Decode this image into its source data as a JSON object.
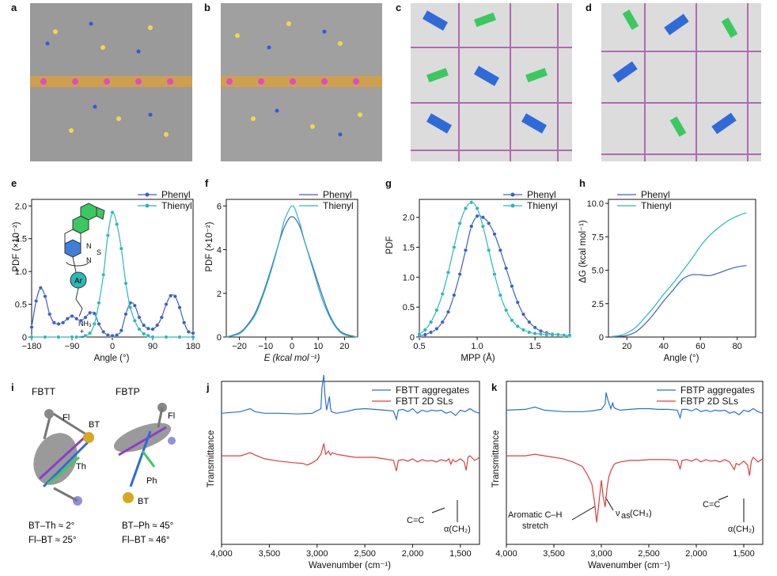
{
  "panel_labels": [
    "a",
    "b",
    "c",
    "d",
    "e",
    "f",
    "g",
    "h",
    "i",
    "j",
    "k"
  ],
  "chart_data": [
    {
      "panel": "e",
      "type": "line",
      "xlabel": "Angle (°)",
      "ylabel": "PDF (×10⁻²)",
      "xlim": [
        -180,
        180
      ],
      "ylim": [
        0,
        2.1
      ],
      "xticks": [
        "−180",
        "−90",
        "0",
        "90",
        "180"
      ],
      "xtick_values": [
        -180,
        -90,
        0,
        90,
        180
      ],
      "yticks": [
        "0",
        "0.5",
        "1.0",
        "1.5",
        "2.0"
      ],
      "ytick_values": [
        0,
        0.5,
        1.0,
        1.5,
        2.0
      ],
      "legend": [
        "Phenyl",
        "Thienyl"
      ],
      "inset_labels": {
        "N1": "N",
        "S": "S",
        "N2": "N",
        "Ar": "Ar",
        "NH3": "NH₃",
        "plus": "+"
      },
      "series": [
        {
          "name": "Phenyl",
          "color": "#3a5fc8",
          "markers": true,
          "x": [
            -180,
            -170,
            -160,
            -150,
            -140,
            -130,
            -120,
            -110,
            -100,
            -90,
            -80,
            -70,
            -60,
            -50,
            -40,
            -30,
            -20,
            -10,
            0,
            10,
            20,
            30,
            40,
            50,
            60,
            70,
            80,
            90,
            100,
            110,
            120,
            130,
            140,
            150,
            160,
            170,
            180
          ],
          "y": [
            0.15,
            0.55,
            0.75,
            0.62,
            0.35,
            0.22,
            0.2,
            0.22,
            0.28,
            0.32,
            0.28,
            0.25,
            0.3,
            0.37,
            0.36,
            0.2,
            0.08,
            0.03,
            0.02,
            0.03,
            0.1,
            0.35,
            0.52,
            0.48,
            0.3,
            0.18,
            0.13,
            0.12,
            0.18,
            0.3,
            0.5,
            0.63,
            0.62,
            0.45,
            0.22,
            0.08,
            0.06
          ]
        },
        {
          "name": "Thienyl",
          "color": "#2ab8b8",
          "markers": true,
          "x": [
            -180,
            -150,
            -120,
            -90,
            -80,
            -60,
            -50,
            -40,
            -30,
            -20,
            -10,
            0,
            10,
            20,
            30,
            40,
            50,
            60,
            70,
            80,
            90,
            120,
            150,
            180
          ],
          "y": [
            0,
            0,
            0,
            0,
            0,
            0.02,
            0.06,
            0.2,
            0.52,
            0.95,
            1.55,
            1.9,
            1.72,
            1.35,
            0.82,
            0.45,
            0.25,
            0.12,
            0.05,
            0.02,
            0,
            0,
            0,
            0
          ]
        }
      ]
    },
    {
      "panel": "f",
      "type": "line",
      "xlabel": "E (kcal mol⁻¹)",
      "ylabel": "PDF (×10⁻²)",
      "xlim": [
        -25,
        25
      ],
      "ylim": [
        0,
        6.3
      ],
      "xticks": [
        "−20",
        "−10",
        "0",
        "10",
        "20"
      ],
      "xtick_values": [
        -20,
        -10,
        0,
        10,
        20
      ],
      "yticks": [
        "0",
        "2",
        "4",
        "6"
      ],
      "ytick_values": [
        0,
        2,
        4,
        6
      ],
      "legend": [
        "Phenyl",
        "Thienyl"
      ],
      "series": [
        {
          "name": "Phenyl",
          "color": "#3a5fc8",
          "x": [
            -25,
            -20,
            -17,
            -14,
            -11,
            -8,
            -5,
            -3,
            -1,
            0,
            1,
            3,
            5,
            8,
            11,
            14,
            17,
            20,
            25
          ],
          "y": [
            0,
            0.2,
            0.55,
            1.1,
            2.0,
            3.1,
            4.3,
            5.0,
            5.45,
            5.5,
            5.45,
            5.05,
            4.3,
            3.2,
            2.1,
            1.1,
            0.45,
            0.15,
            0
          ]
        },
        {
          "name": "Thienyl",
          "color": "#2ab8b8",
          "x": [
            -25,
            -20,
            -17,
            -14,
            -11,
            -8,
            -5,
            -3,
            -1,
            0,
            1,
            3,
            5,
            8,
            11,
            14,
            17,
            20,
            25
          ],
          "y": [
            0,
            0.15,
            0.5,
            1.0,
            1.9,
            3.0,
            4.3,
            5.3,
            5.85,
            6.0,
            5.9,
            5.2,
            4.3,
            3.1,
            1.9,
            1.0,
            0.4,
            0.1,
            0
          ]
        }
      ]
    },
    {
      "panel": "g",
      "type": "line",
      "xlabel": "MPP (Å)",
      "ylabel": "PDF",
      "xlim": [
        0.5,
        1.8
      ],
      "ylim": [
        0,
        2.3
      ],
      "xticks": [
        "0.5",
        "1.0",
        "1.5"
      ],
      "xtick_values": [
        0.5,
        1.0,
        1.5
      ],
      "yticks": [
        "0",
        "0.5",
        "1.0",
        "1.5",
        "2.0"
      ],
      "ytick_values": [
        0,
        0.5,
        1.0,
        1.5,
        2.0
      ],
      "legend": [
        "Phenyl",
        "Thienyl"
      ],
      "series": [
        {
          "name": "Phenyl",
          "color": "#3a5fc8",
          "markers": true,
          "x": [
            0.5,
            0.55,
            0.6,
            0.65,
            0.7,
            0.75,
            0.8,
            0.85,
            0.9,
            0.95,
            1.0,
            1.05,
            1.1,
            1.15,
            1.2,
            1.25,
            1.3,
            1.35,
            1.4,
            1.45,
            1.5,
            1.55,
            1.6,
            1.65,
            1.7,
            1.75,
            1.8
          ],
          "y": [
            0.02,
            0.04,
            0.08,
            0.14,
            0.25,
            0.42,
            0.7,
            1.05,
            1.45,
            1.85,
            2.02,
            2.0,
            1.9,
            1.72,
            1.45,
            1.15,
            0.85,
            0.58,
            0.38,
            0.25,
            0.16,
            0.1,
            0.07,
            0.05,
            0.04,
            0.03,
            0.02
          ]
        },
        {
          "name": "Thienyl",
          "color": "#2ab8b8",
          "markers": true,
          "x": [
            0.5,
            0.55,
            0.6,
            0.65,
            0.7,
            0.75,
            0.8,
            0.85,
            0.9,
            0.95,
            1.0,
            1.05,
            1.1,
            1.15,
            1.2,
            1.25,
            1.3,
            1.35,
            1.4,
            1.45,
            1.5,
            1.55,
            1.6,
            1.65,
            1.7,
            1.75,
            1.8
          ],
          "y": [
            0.05,
            0.12,
            0.25,
            0.45,
            0.72,
            1.08,
            1.5,
            1.9,
            2.15,
            2.25,
            2.15,
            1.85,
            1.45,
            1.05,
            0.7,
            0.45,
            0.28,
            0.18,
            0.12,
            0.08,
            0.06,
            0.05,
            0.04,
            0.04,
            0.04,
            0.03,
            0.03
          ]
        }
      ]
    },
    {
      "panel": "h",
      "type": "line",
      "xlabel": "Angle (°)",
      "ylabel": "ΔG (kcal mol⁻¹)",
      "xlim": [
        10,
        90
      ],
      "ylim": [
        0,
        10.3
      ],
      "xticks": [
        "20",
        "40",
        "60",
        "80"
      ],
      "xtick_values": [
        20,
        40,
        60,
        80
      ],
      "yticks": [
        "0",
        "2.5",
        "5.0",
        "7.5",
        "10.0"
      ],
      "ytick_values": [
        0,
        2.5,
        5.0,
        7.5,
        10.0
      ],
      "legend": [
        "Phenyl",
        "Thienyl"
      ],
      "series": [
        {
          "name": "Phenyl",
          "color": "#3a5fc8",
          "x": [
            12,
            16,
            20,
            25,
            30,
            35,
            40,
            45,
            50,
            55,
            60,
            65,
            70,
            75,
            80,
            85
          ],
          "y": [
            0.02,
            0.05,
            0.12,
            0.4,
            1.0,
            1.8,
            2.7,
            3.5,
            4.3,
            4.65,
            4.65,
            4.6,
            4.8,
            5.05,
            5.25,
            5.35
          ]
        },
        {
          "name": "Thienyl",
          "color": "#2ab8b8",
          "x": [
            12,
            16,
            20,
            25,
            30,
            35,
            40,
            45,
            50,
            55,
            60,
            65,
            70,
            75,
            80,
            85
          ],
          "y": [
            0.05,
            0.12,
            0.3,
            0.75,
            1.5,
            2.3,
            3.2,
            4.0,
            4.9,
            5.8,
            6.8,
            7.6,
            8.2,
            8.7,
            9.05,
            9.3
          ]
        }
      ]
    },
    {
      "panel": "j",
      "type": "line",
      "xlabel": "Wavenumber (cm⁻¹)",
      "ylabel": "Transmittance",
      "xlim": [
        4000,
        1300
      ],
      "xticks": [
        "4,000",
        "3,500",
        "3,000",
        "2,500",
        "2,000",
        "1,500"
      ],
      "xtick_values": [
        4000,
        3500,
        3000,
        2500,
        2000,
        1500
      ],
      "legend": [
        "FBTT aggregates",
        "FBTT 2D SLs"
      ],
      "annotations": [
        "C=C",
        "α(CH₂)"
      ],
      "series": [
        {
          "name": "FBTT aggregates",
          "color": "#2a6fd6",
          "x": [
            4000,
            3800,
            3700,
            3650,
            3550,
            3400,
            3200,
            3050,
            2960,
            2950,
            2930,
            2920,
            2900,
            2870,
            2860,
            2850,
            2800,
            2700,
            2600,
            2500,
            2400,
            2300,
            2200,
            2170,
            2150,
            2100,
            2050,
            2000,
            1950,
            1900,
            1850,
            1800,
            1750,
            1700,
            1650,
            1600,
            1550,
            1500,
            1450,
            1400,
            1350,
            1300
          ],
          "y": [
            0.82,
            0.8,
            0.76,
            0.8,
            0.82,
            0.82,
            0.83,
            0.82,
            0.76,
            0.5,
            0.32,
            0.55,
            0.78,
            0.6,
            0.75,
            0.8,
            0.82,
            0.8,
            0.77,
            0.76,
            0.77,
            0.78,
            0.79,
            0.9,
            0.78,
            0.77,
            0.8,
            0.76,
            0.82,
            0.78,
            0.8,
            0.78,
            0.79,
            0.78,
            0.82,
            0.8,
            0.85,
            0.78,
            0.8,
            0.76,
            0.8,
            0.82
          ]
        },
        {
          "name": "FBTT 2D SLs",
          "color": "#e03c3c",
          "x": [
            4000,
            3800,
            3700,
            3650,
            3550,
            3400,
            3250,
            3150,
            3100,
            3050,
            3000,
            2960,
            2930,
            2910,
            2880,
            2860,
            2840,
            2800,
            2700,
            2600,
            2500,
            2400,
            2300,
            2200,
            2170,
            2150,
            2100,
            2050,
            2000,
            1950,
            1900,
            1850,
            1800,
            1750,
            1700,
            1650,
            1620,
            1600,
            1580,
            1550,
            1500,
            1460,
            1440,
            1420,
            1400,
            1350,
            1300
          ],
          "y": [
            0.88,
            0.88,
            0.84,
            0.87,
            0.92,
            0.95,
            0.97,
            0.98,
            1.0,
            0.97,
            0.93,
            0.86,
            0.72,
            0.86,
            0.82,
            0.87,
            0.84,
            0.86,
            0.88,
            0.9,
            0.9,
            0.9,
            0.92,
            0.94,
            1.08,
            0.94,
            0.93,
            0.95,
            0.92,
            0.96,
            0.93,
            0.95,
            0.94,
            0.96,
            0.93,
            0.95,
            0.92,
            0.99,
            0.93,
            0.96,
            0.92,
            0.96,
            1.07,
            0.9,
            0.88,
            0.94,
            0.9
          ]
        }
      ]
    },
    {
      "panel": "k",
      "type": "line",
      "xlabel": "Wavenumber (cm⁻¹)",
      "ylabel": "Transmittance",
      "xlim": [
        4000,
        1300
      ],
      "xticks": [
        "4,000",
        "3,500",
        "3,000",
        "2,500",
        "2,000",
        "1,500"
      ],
      "xtick_values": [
        4000,
        3500,
        3000,
        2500,
        2000,
        1500
      ],
      "legend": [
        "FBTP aggregates",
        "FBTP 2D SLs"
      ],
      "annotations": [
        "Aromatic C–H",
        "stretch",
        "ν",
        "as",
        "(CH₃)",
        "C=C",
        "α(CH₂)"
      ],
      "series": [
        {
          "name": "FBTP aggregates",
          "color": "#2a6fd6",
          "x": [
            4000,
            3800,
            3700,
            3600,
            3400,
            3200,
            3100,
            3000,
            2960,
            2950,
            2930,
            2900,
            2880,
            2870,
            2850,
            2800,
            2700,
            2600,
            2500,
            2400,
            2300,
            2200,
            2170,
            2150,
            2100,
            2050,
            2000,
            1950,
            1900,
            1850,
            1800,
            1750,
            1700,
            1650,
            1600,
            1550,
            1500,
            1450,
            1400,
            1350,
            1300
          ],
          "y": [
            0.78,
            0.77,
            0.74,
            0.78,
            0.8,
            0.8,
            0.79,
            0.77,
            0.7,
            0.55,
            0.65,
            0.76,
            0.68,
            0.74,
            0.76,
            0.78,
            0.77,
            0.76,
            0.76,
            0.77,
            0.77,
            0.78,
            0.88,
            0.77,
            0.77,
            0.79,
            0.76,
            0.8,
            0.78,
            0.8,
            0.78,
            0.79,
            0.78,
            0.82,
            0.8,
            0.84,
            0.78,
            0.8,
            0.76,
            0.8,
            0.82
          ]
        },
        {
          "name": "FBTP 2D SLs",
          "color": "#e03c3c",
          "x": [
            4000,
            3800,
            3700,
            3600,
            3500,
            3400,
            3300,
            3200,
            3150,
            3100,
            3070,
            3050,
            3030,
            3000,
            2980,
            2960,
            2940,
            2920,
            2900,
            2870,
            2850,
            2800,
            2700,
            2600,
            2500,
            2400,
            2300,
            2200,
            2170,
            2150,
            2100,
            2050,
            2000,
            1950,
            1900,
            1850,
            1800,
            1750,
            1700,
            1650,
            1620,
            1600,
            1580,
            1550,
            1500,
            1460,
            1440,
            1420,
            1400,
            1350,
            1300
          ],
          "y": [
            0.88,
            0.88,
            0.86,
            0.88,
            0.9,
            0.92,
            0.96,
            1.02,
            1.12,
            1.25,
            1.5,
            1.75,
            1.55,
            1.2,
            1.42,
            1.55,
            1.3,
            1.15,
            1.08,
            1.0,
            0.98,
            0.96,
            0.94,
            0.94,
            0.93,
            0.93,
            0.93,
            0.94,
            1.05,
            0.94,
            0.93,
            0.95,
            0.92,
            0.96,
            0.93,
            0.95,
            0.94,
            0.96,
            0.93,
            0.96,
            1.02,
            1.06,
            0.98,
            1.0,
            0.95,
            1.0,
            1.14,
            0.95,
            0.9,
            0.96,
            0.92
          ]
        }
      ]
    }
  ],
  "panel_i": {
    "fbtt": {
      "title": "FBTT",
      "labels": [
        "Fl",
        "BT",
        "Th"
      ],
      "caption1": "BT–Th ≈ 2°",
      "caption2": "Fl–BT ≈ 25°"
    },
    "fbtp": {
      "title": "FBTP",
      "labels": [
        "Fl",
        "Ph",
        "BT"
      ],
      "caption1": "BT–Ph ≈ 45°",
      "caption2": "Fl–BT ≈ 46°"
    }
  }
}
